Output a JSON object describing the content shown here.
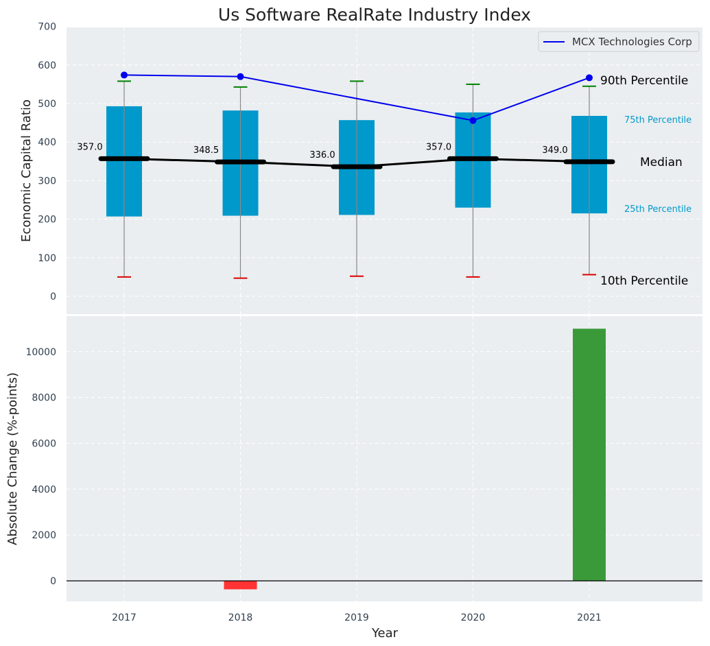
{
  "chart_data": [
    {
      "type": "box",
      "title": "Us Software RealRate Industry Index",
      "xlabel": "",
      "ylabel": "Economic Capital Ratio",
      "ylim": [
        -50,
        700
      ],
      "yticks": [
        0,
        100,
        200,
        300,
        400,
        500,
        600,
        700
      ],
      "grid": true,
      "legend_position": "top-right",
      "categories": [
        "2017",
        "2018",
        "2019",
        "2020",
        "2021"
      ],
      "p10": [
        50,
        47,
        52,
        50,
        56
      ],
      "p25": [
        207,
        209,
        211,
        230,
        215
      ],
      "median": [
        357.0,
        348.5,
        336.0,
        357.0,
        349.0
      ],
      "median_labels": [
        "357.0",
        "348.5",
        "336.0",
        "357.0",
        "349.0"
      ],
      "p75": [
        493,
        482,
        457,
        477,
        468
      ],
      "p90": [
        558,
        543,
        558,
        550,
        545
      ],
      "series": [
        {
          "name": "MCX Technologies Corp",
          "values": [
            574,
            570,
            null,
            456,
            567
          ]
        }
      ],
      "annotations": {
        "p90": "90th Percentile",
        "p75": "75th Percentile",
        "median": "Median",
        "p25": "25th Percentile",
        "p10": "10th Percentile"
      }
    },
    {
      "type": "bar",
      "xlabel": "Year",
      "ylabel": "Absolute Change (%-points)",
      "ylim": [
        -900,
        11500
      ],
      "yticks": [
        0,
        2000,
        4000,
        6000,
        8000,
        10000
      ],
      "grid": true,
      "categories": [
        "2017",
        "2018",
        "2019",
        "2020",
        "2021"
      ],
      "values": [
        0,
        -370,
        0,
        0,
        11000
      ]
    }
  ],
  "colors": {
    "box": "#0099cc",
    "company_line": "#0000ee",
    "median_line": "#000000",
    "cap_top": "#008000",
    "cap_bottom": "#dd0000",
    "positive_bar": "#3a9a3a",
    "negative_bar": "#ff3333",
    "panel_bg": "#eaeef0",
    "axis_text": "#2f3e4e"
  }
}
